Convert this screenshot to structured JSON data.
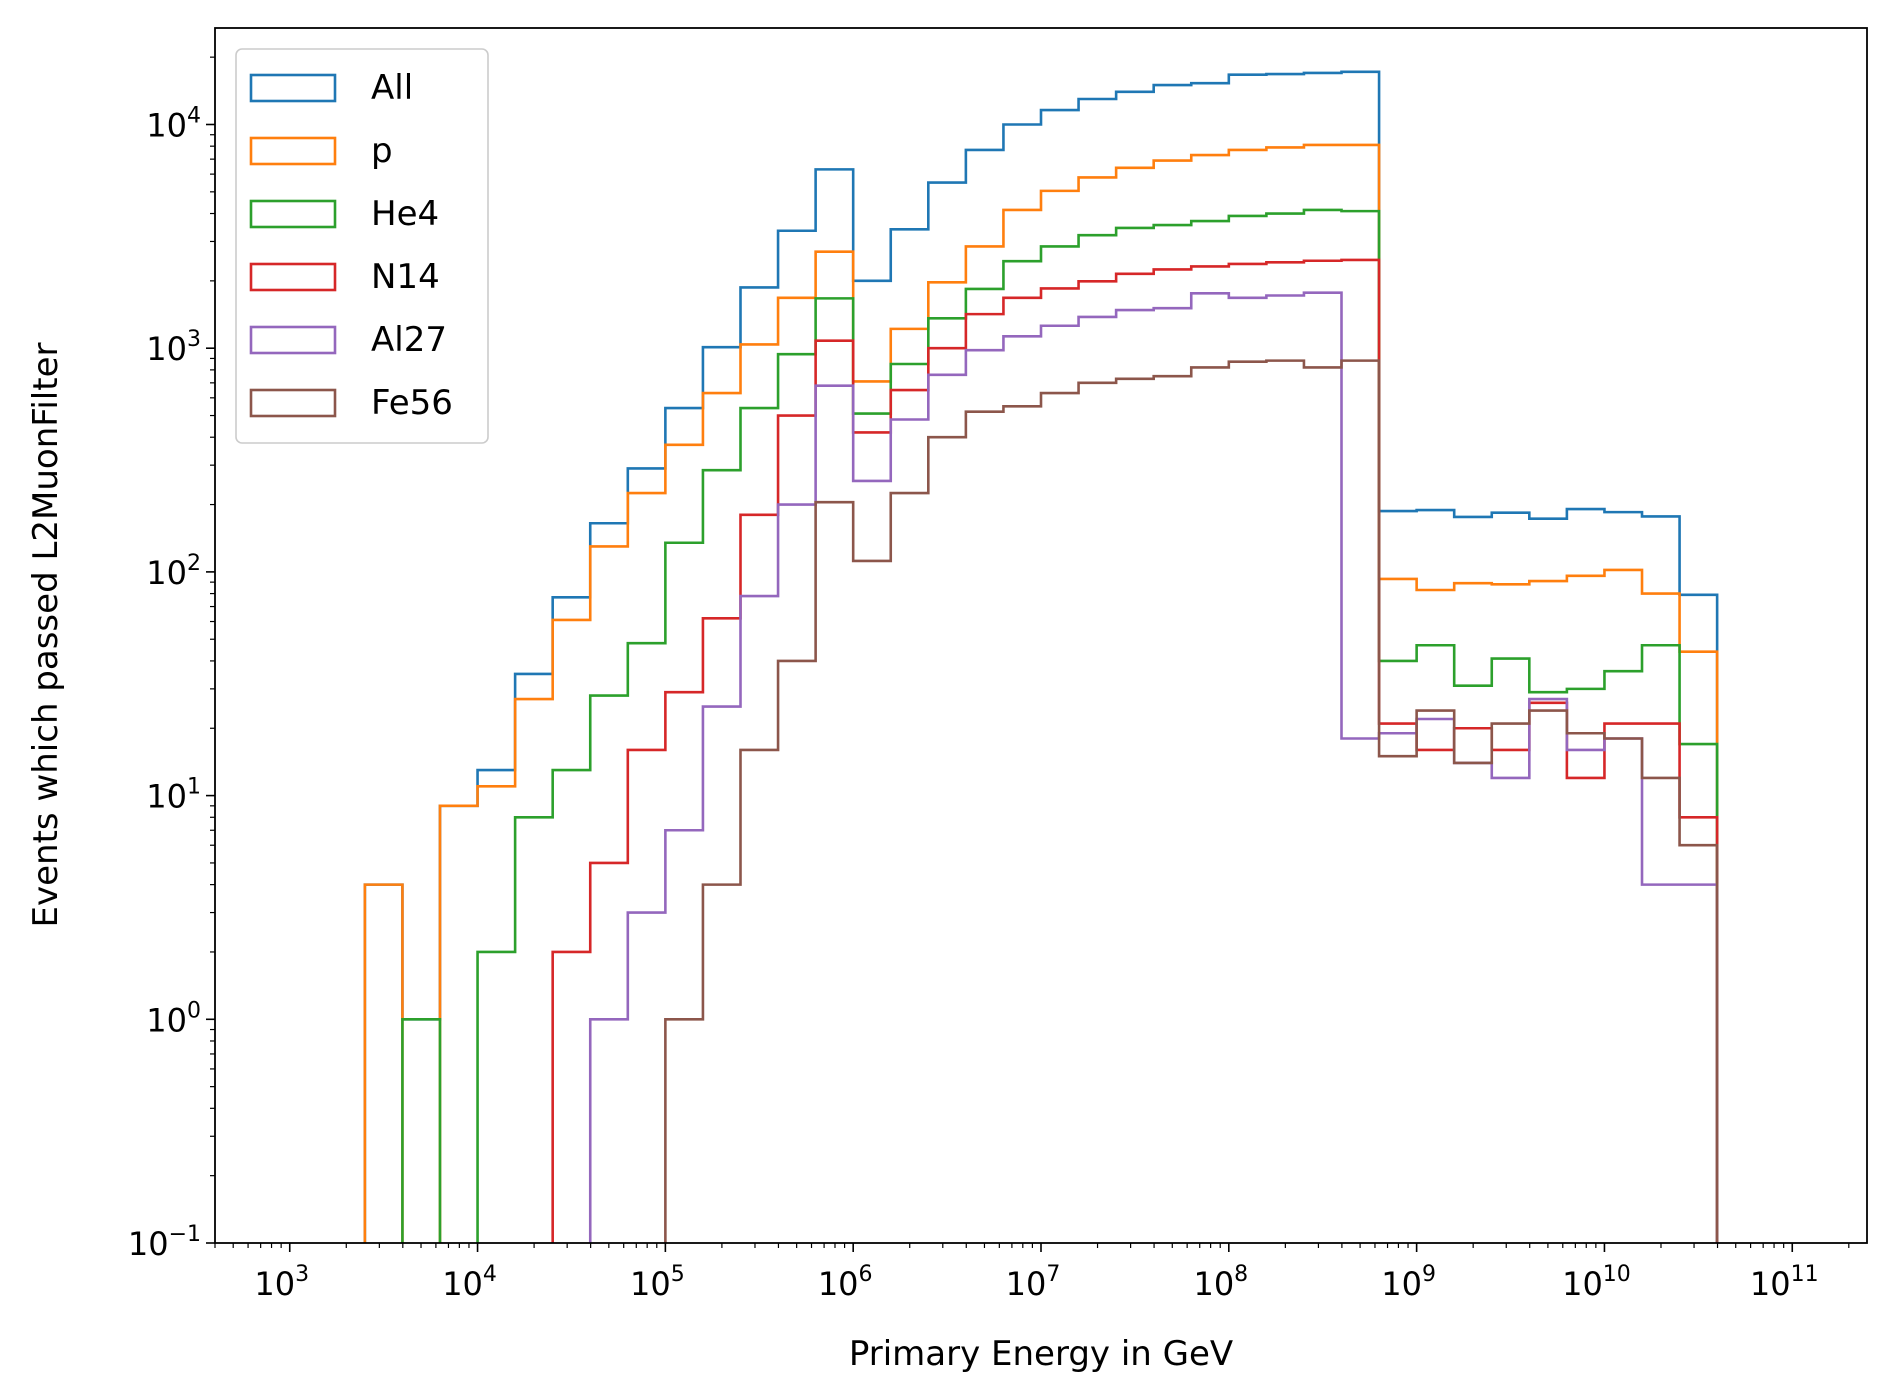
{
  "chart_data": {
    "type": "step-histogram",
    "title": "",
    "xlabel": "Primary Energy in GeV",
    "ylabel": "Events which passed L2MuonFilter",
    "xscale": "log",
    "yscale": "log",
    "xlim": [
      400,
      250000000000.0
    ],
    "ylim": [
      0.1,
      27000
    ],
    "x_ticks": [
      {
        "value": 1000.0,
        "base": "10",
        "exp": "3"
      },
      {
        "value": 10000.0,
        "base": "10",
        "exp": "4"
      },
      {
        "value": 100000.0,
        "base": "10",
        "exp": "5"
      },
      {
        "value": 1000000.0,
        "base": "10",
        "exp": "6"
      },
      {
        "value": 10000000.0,
        "base": "10",
        "exp": "7"
      },
      {
        "value": 100000000.0,
        "base": "10",
        "exp": "8"
      },
      {
        "value": 1000000000.0,
        "base": "10",
        "exp": "9"
      },
      {
        "value": 10000000000.0,
        "base": "10",
        "exp": "10"
      },
      {
        "value": 100000000000.0,
        "base": "10",
        "exp": "11"
      }
    ],
    "y_ticks": [
      {
        "value": 0.1,
        "base": "10",
        "exp": "−1"
      },
      {
        "value": 1,
        "base": "10",
        "exp": "0"
      },
      {
        "value": 10,
        "base": "10",
        "exp": "1"
      },
      {
        "value": 100,
        "base": "10",
        "exp": "2"
      },
      {
        "value": 1000,
        "base": "10",
        "exp": "3"
      },
      {
        "value": 10000,
        "base": "10",
        "exp": "4"
      }
    ],
    "legend_position": "upper left",
    "bin_edges_log10": [
      3.4,
      3.6,
      3.8,
      4.0,
      4.2,
      4.4,
      4.6,
      4.8,
      5.0,
      5.2,
      5.4,
      5.6,
      5.8,
      6.0,
      6.2,
      6.4,
      6.6,
      6.8,
      7.0,
      7.2,
      7.4,
      7.6,
      7.8,
      8.0,
      8.2,
      8.4,
      8.6,
      8.8,
      9.0,
      9.2,
      9.4,
      9.6,
      9.8,
      10.0,
      10.2,
      10.4,
      10.6,
      10.8
    ],
    "series": [
      {
        "name": "All",
        "color": "#1f77b4",
        "values": [
          4,
          1,
          9,
          13,
          35,
          77,
          165,
          290,
          540,
          1010,
          1870,
          3350,
          6300,
          2000,
          3400,
          5500,
          7700,
          10000,
          11600,
          13000,
          14000,
          15000,
          15300,
          16700,
          16800,
          17000,
          17200,
          187,
          189,
          176,
          184,
          173,
          191,
          185,
          177,
          79
        ]
      },
      {
        "name": "p",
        "color": "#ff7f0e",
        "values": [
          4,
          0,
          9,
          11,
          27,
          61,
          130,
          225,
          370,
          630,
          1040,
          1680,
          2700,
          710,
          1220,
          1970,
          2850,
          4150,
          5050,
          5800,
          6400,
          6900,
          7300,
          7700,
          7900,
          8100,
          8100,
          93,
          83,
          89,
          88,
          91,
          96,
          102,
          80,
          44
        ]
      },
      {
        "name": "He4",
        "color": "#2ca02c",
        "values": [
          0,
          1,
          0,
          2,
          8,
          13,
          28,
          48,
          135,
          285,
          540,
          940,
          1670,
          510,
          850,
          1360,
          1840,
          2450,
          2850,
          3200,
          3450,
          3550,
          3700,
          3900,
          4000,
          4150,
          4100,
          40,
          47,
          31,
          41,
          29,
          30,
          36,
          47,
          17
        ]
      },
      {
        "name": "N14",
        "color": "#d62728",
        "values": [
          0,
          0,
          0,
          0,
          0,
          2,
          5,
          16,
          29,
          62,
          180,
          500,
          1080,
          420,
          650,
          1000,
          1420,
          1680,
          1850,
          1990,
          2150,
          2250,
          2320,
          2380,
          2420,
          2460,
          2480,
          21,
          16,
          20,
          16,
          26,
          12,
          21,
          21,
          8
        ]
      },
      {
        "name": "Al27",
        "color": "#9467bd",
        "values": [
          0,
          0,
          0,
          0,
          0,
          0,
          1,
          3,
          7,
          25,
          78,
          200,
          680,
          255,
          480,
          760,
          980,
          1130,
          1260,
          1380,
          1480,
          1510,
          1760,
          1680,
          1720,
          1770,
          18,
          19,
          22,
          14,
          12,
          27,
          16,
          18,
          4,
          4
        ]
      },
      {
        "name": "Fe56",
        "color": "#8c564b",
        "values": [
          0,
          0,
          0,
          0,
          0,
          0,
          0,
          0,
          1,
          4,
          16,
          40,
          205,
          112,
          225,
          400,
          520,
          550,
          630,
          700,
          730,
          750,
          820,
          870,
          880,
          820,
          880,
          15,
          24,
          14,
          21,
          24,
          19,
          18,
          12,
          6
        ]
      }
    ]
  }
}
